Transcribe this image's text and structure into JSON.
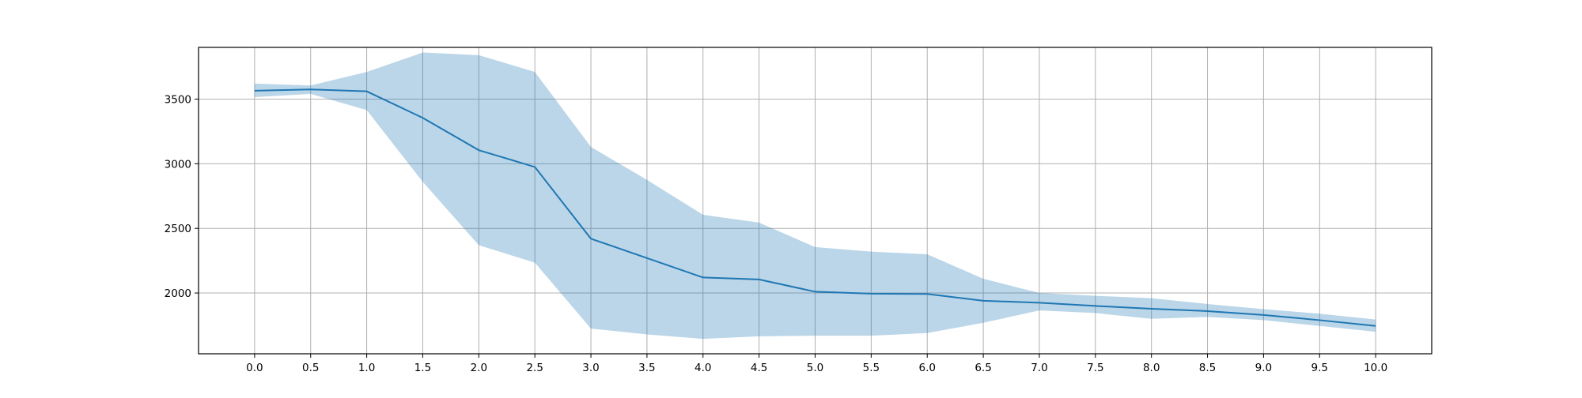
{
  "chart_data": {
    "type": "line",
    "title": "",
    "xlabel": "",
    "ylabel": "",
    "xlim": [
      -0.5,
      10.5
    ],
    "ylim": [
      1530,
      3900
    ],
    "grid": true,
    "x": [
      0.0,
      0.5,
      1.0,
      1.5,
      2.0,
      2.5,
      3.0,
      3.5,
      4.0,
      4.5,
      5.0,
      5.5,
      6.0,
      6.5,
      7.0,
      7.5,
      8.0,
      8.5,
      9.0,
      9.5,
      10.0
    ],
    "x_ticks": [
      "0.0",
      "0.5",
      "1.0",
      "1.5",
      "2.0",
      "2.5",
      "3.0",
      "3.5",
      "4.0",
      "4.5",
      "5.0",
      "5.5",
      "6.0",
      "6.5",
      "7.0",
      "7.5",
      "8.0",
      "8.5",
      "9.0",
      "9.5",
      "10.0"
    ],
    "y_ticks": [
      2000,
      2500,
      3000,
      3500
    ],
    "y_tick_labels": [
      "2000",
      "2500",
      "3000",
      "3500"
    ],
    "series": [
      {
        "values": [
          3565,
          3575,
          3560,
          3355,
          3105,
          2975,
          2420,
          2270,
          2120,
          2105,
          2010,
          1995,
          1993,
          1940,
          1925,
          1900,
          1878,
          1860,
          1830,
          1790,
          1745
        ],
        "lower": [
          3515,
          3540,
          3415,
          2860,
          2370,
          2235,
          1725,
          1680,
          1645,
          1665,
          1670,
          1670,
          1690,
          1770,
          1865,
          1845,
          1800,
          1815,
          1790,
          1745,
          1700
        ],
        "upper": [
          3620,
          3605,
          3710,
          3860,
          3840,
          3710,
          3130,
          2875,
          2605,
          2545,
          2355,
          2320,
          2300,
          2110,
          2000,
          1978,
          1960,
          1915,
          1875,
          1840,
          1795
        ],
        "color": "#1f77b4",
        "band_color": "#1f77b4",
        "band_opacity": 0.3
      }
    ]
  }
}
